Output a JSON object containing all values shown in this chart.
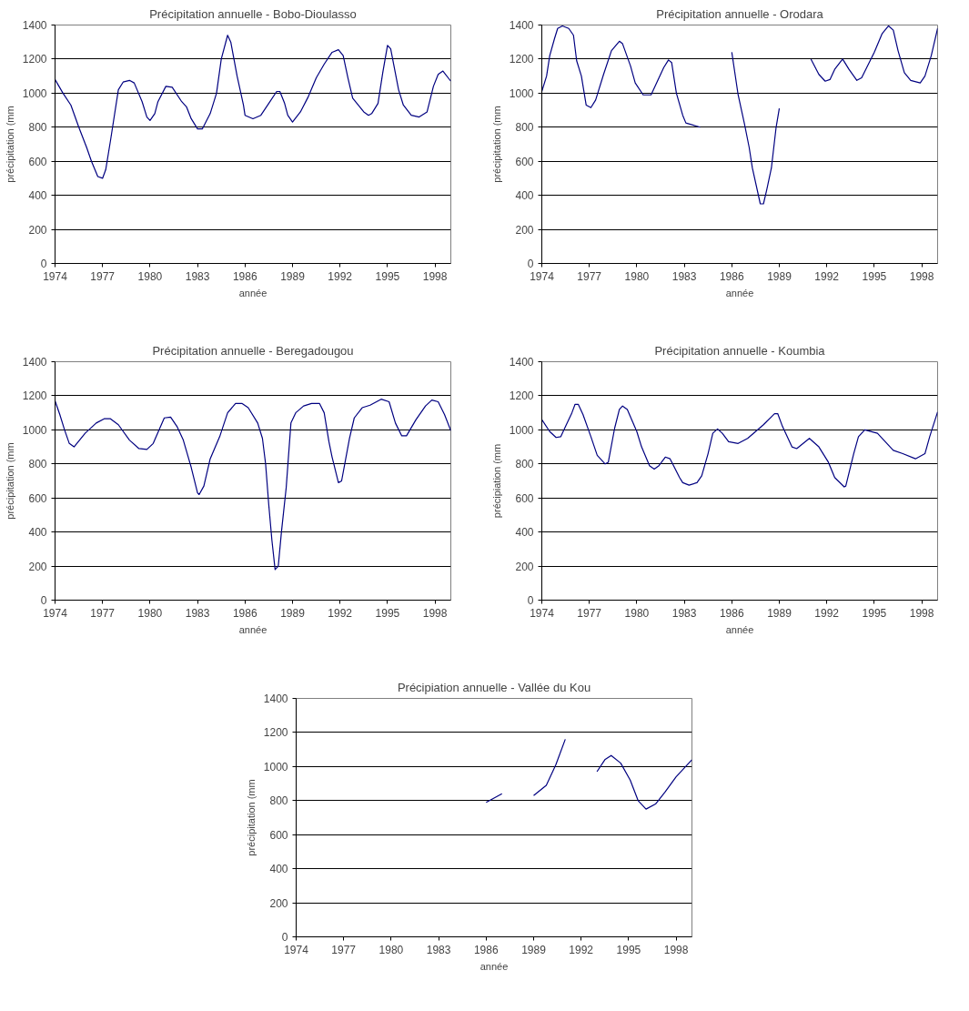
{
  "chart_data": [
    {
      "type": "line",
      "title": "Précipitation annuelle - Bobo-Dioulasso",
      "xlabel": "année",
      "ylabel": "précipitation (mm",
      "xlim": [
        1974,
        1999
      ],
      "ylim": [
        0,
        1400
      ],
      "xticks": [
        1974,
        1977,
        1980,
        1983,
        1986,
        1989,
        1992,
        1995,
        1998
      ],
      "yticks": [
        0,
        200,
        400,
        600,
        800,
        1000,
        1200,
        1400
      ],
      "grid": "y",
      "x": [
        1974.0,
        1974.5,
        1975.0,
        1975.5,
        1976.0,
        1976.3,
        1976.7,
        1977.0,
        1977.2,
        1977.5,
        1978.0,
        1978.3,
        1978.7,
        1979.0,
        1979.5,
        1979.8,
        1980.0,
        1980.3,
        1980.5,
        1981.0,
        1981.4,
        1982.0,
        1982.3,
        1982.6,
        1983.0,
        1983.3,
        1983.8,
        1984.2,
        1984.5,
        1984.9,
        1985.1,
        1985.5,
        1985.9,
        1986.0,
        1986.5,
        1987.0,
        1987.5,
        1988.0,
        1988.2,
        1988.5,
        1988.7,
        1989.0,
        1989.5,
        1990.0,
        1990.5,
        1991.0,
        1991.5,
        1991.9,
        1992.2,
        1992.5,
        1992.8,
        1993.5,
        1993.8,
        1994.0,
        1994.4,
        1994.7,
        1995.0,
        1995.2,
        1995.7,
        1996.0,
        1996.5,
        1997.0,
        1997.5,
        1997.9,
        1998.2,
        1998.5,
        1999.0
      ],
      "series": [
        {
          "color": "#000080",
          "values": [
            1080,
            1000,
            930,
            800,
            680,
            600,
            510,
            500,
            550,
            720,
            1020,
            1065,
            1075,
            1060,
            950,
            860,
            840,
            880,
            950,
            1040,
            1035,
            950,
            920,
            850,
            790,
            790,
            880,
            1000,
            1200,
            1340,
            1300,
            1100,
            930,
            870,
            850,
            870,
            940,
            1010,
            1010,
            940,
            870,
            830,
            890,
            980,
            1090,
            1170,
            1240,
            1255,
            1220,
            1090,
            970,
            890,
            870,
            880,
            940,
            1120,
            1280,
            1260,
            1020,
            930,
            870,
            860,
            890,
            1040,
            1110,
            1130,
            1070
          ]
        }
      ]
    },
    {
      "type": "line",
      "title": "Précipitation annuelle - Orodara",
      "xlabel": "année",
      "ylabel": "précipitation (mm",
      "xlim": [
        1974,
        1999
      ],
      "ylim": [
        0,
        1400
      ],
      "xticks": [
        1974,
        1977,
        1980,
        1983,
        1986,
        1989,
        1992,
        1995,
        1998
      ],
      "yticks": [
        0,
        200,
        400,
        600,
        800,
        1000,
        1200,
        1400
      ],
      "grid": "y",
      "x": [
        1974.0,
        1974.3,
        1974.5,
        1974.8,
        1975.0,
        1975.3,
        1975.7,
        1976.0,
        1976.2,
        1976.5,
        1976.8,
        1977.1,
        1977.4,
        1977.9,
        1978.4,
        1978.9,
        1979.1,
        1979.6,
        1979.9,
        1980.4,
        1980.9,
        1981.2,
        1981.7,
        1982.0,
        1982.2,
        1982.5,
        1982.9,
        1983.1,
        1984.0,
        1985.0,
        1986.0,
        1986.4,
        1986.8,
        1987.1,
        1987.3,
        1987.8,
        1988.0,
        1988.2,
        1988.5,
        1988.8,
        1989.0,
        1990.0,
        1991.0,
        1991.5,
        1991.9,
        1992.2,
        1992.5,
        1993.0,
        1993.4,
        1993.9,
        1994.2,
        1995.0,
        1995.5,
        1995.9,
        1996.2,
        1996.5,
        1996.9,
        1997.3,
        1997.9,
        1998.2,
        1998.6,
        1999.0
      ],
      "series": [
        {
          "color": "#000080",
          "values": [
            1010,
            1100,
            1220,
            1320,
            1380,
            1395,
            1380,
            1340,
            1190,
            1100,
            930,
            915,
            960,
            1110,
            1250,
            1305,
            1290,
            1160,
            1060,
            990,
            990,
            1050,
            1150,
            1195,
            1180,
            1000,
            870,
            825,
            800,
            null,
            1240,
            990,
            820,
            680,
            560,
            350,
            350,
            430,
            560,
            800,
            910,
            null,
            1200,
            1110,
            1070,
            1080,
            1140,
            1200,
            1140,
            1075,
            1090,
            1240,
            1350,
            1395,
            1370,
            1250,
            1120,
            1075,
            1060,
            1100,
            1220,
            1380
          ]
        }
      ]
    },
    {
      "type": "line",
      "title": "Précipitation annuelle - Beregadougou",
      "xlabel": "année",
      "ylabel": "précipitation (mm",
      "xlim": [
        1974,
        1999
      ],
      "ylim": [
        0,
        1400
      ],
      "xticks": [
        1974,
        1977,
        1980,
        1983,
        1986,
        1989,
        1992,
        1995,
        1998
      ],
      "yticks": [
        0,
        200,
        400,
        600,
        800,
        1000,
        1200,
        1400
      ],
      "grid": "y",
      "x": [
        1974.0,
        1974.3,
        1974.6,
        1974.9,
        1975.2,
        1975.9,
        1976.6,
        1977.1,
        1977.5,
        1978.0,
        1978.7,
        1979.3,
        1979.8,
        1980.2,
        1980.9,
        1981.3,
        1981.7,
        1982.1,
        1982.6,
        1983.0,
        1983.1,
        1983.4,
        1983.8,
        1984.4,
        1984.9,
        1985.4,
        1985.8,
        1986.2,
        1986.8,
        1987.1,
        1987.3,
        1987.5,
        1987.7,
        1987.9,
        1988.1,
        1988.3,
        1988.6,
        1988.9,
        1989.2,
        1989.7,
        1990.2,
        1990.7,
        1991.0,
        1991.3,
        1991.5,
        1991.9,
        1992.1,
        1992.6,
        1992.9,
        1993.4,
        1993.9,
        1994.6,
        1995.1,
        1995.5,
        1995.9,
        1996.2,
        1996.8,
        1997.4,
        1997.8,
        1998.2,
        1998.6,
        1999.0
      ],
      "series": [
        {
          "color": "#000080",
          "values": [
            1170,
            1090,
            1000,
            920,
            900,
            980,
            1040,
            1065,
            1065,
            1030,
            940,
            890,
            885,
            920,
            1070,
            1075,
            1020,
            940,
            780,
            630,
            620,
            670,
            830,
            960,
            1100,
            1155,
            1155,
            1130,
            1040,
            950,
            800,
            560,
            350,
            180,
            200,
            400,
            660,
            1040,
            1100,
            1140,
            1155,
            1155,
            1100,
            930,
            840,
            690,
            700,
            950,
            1070,
            1130,
            1145,
            1180,
            1165,
            1040,
            965,
            965,
            1060,
            1140,
            1175,
            1165,
            1090,
            995
          ]
        }
      ]
    },
    {
      "type": "line",
      "title": "Précipitation annuelle - Koumbia",
      "xlabel": "année",
      "ylabel": "précipiation (mm",
      "xlim": [
        1974,
        1999
      ],
      "ylim": [
        0,
        1400
      ],
      "xticks": [
        1974,
        1977,
        1980,
        1983,
        1986,
        1989,
        1992,
        1995,
        1998
      ],
      "yticks": [
        0,
        200,
        400,
        600,
        800,
        1000,
        1200,
        1400
      ],
      "grid": "y",
      "x": [
        1974.0,
        1974.5,
        1974.9,
        1975.2,
        1975.5,
        1975.9,
        1976.1,
        1976.3,
        1976.6,
        1977.1,
        1977.5,
        1978.0,
        1978.2,
        1978.6,
        1978.9,
        1979.1,
        1979.4,
        1980.0,
        1980.3,
        1980.8,
        1981.1,
        1981.4,
        1981.8,
        1982.1,
        1982.7,
        1982.9,
        1983.3,
        1983.8,
        1984.1,
        1984.5,
        1984.8,
        1985.1,
        1985.4,
        1985.8,
        1986.4,
        1987.0,
        1988.0,
        1988.7,
        1988.9,
        1989.2,
        1989.8,
        1990.1,
        1990.9,
        1991.5,
        1992.1,
        1992.5,
        1993.1,
        1993.2,
        1993.7,
        1994.0,
        1994.4,
        1995.2,
        1996.2,
        1996.8,
        1997.6,
        1998.2,
        1998.5,
        1999.0
      ],
      "series": [
        {
          "color": "#000080",
          "values": [
            1060,
            990,
            955,
            960,
            1020,
            1100,
            1150,
            1150,
            1090,
            960,
            850,
            800,
            810,
            1010,
            1120,
            1140,
            1120,
            990,
            900,
            790,
            770,
            790,
            840,
            830,
            720,
            690,
            675,
            690,
            730,
            860,
            980,
            1005,
            980,
            930,
            920,
            950,
            1030,
            1095,
            1095,
            1020,
            900,
            890,
            950,
            900,
            810,
            720,
            665,
            670,
            860,
            960,
            1000,
            980,
            880,
            860,
            830,
            860,
            960,
            1105
          ]
        }
      ]
    },
    {
      "type": "line",
      "title": "Précipiation annuelle - Vallée du Kou",
      "xlabel": "année",
      "ylabel": "précipitation (mm",
      "xlim": [
        1974,
        1999
      ],
      "ylim": [
        0,
        1400
      ],
      "xticks": [
        1974,
        1977,
        1980,
        1983,
        1986,
        1989,
        1992,
        1995,
        1998
      ],
      "yticks": [
        0,
        200,
        400,
        600,
        800,
        1000,
        1200,
        1400
      ],
      "grid": "y",
      "x": [
        1986.0,
        1987.0,
        1988.0,
        1989.0,
        1989.8,
        1990.4,
        1991.0,
        1992.0,
        1993.0,
        1993.5,
        1993.9,
        1994.5,
        1995.1,
        1995.6,
        1996.1,
        1996.7,
        1997.3,
        1998.0,
        1999.0
      ],
      "series": [
        {
          "color": "#000080",
          "values": [
            790,
            840,
            null,
            830,
            890,
            1010,
            1160,
            null,
            970,
            1040,
            1065,
            1020,
            920,
            800,
            750,
            780,
            850,
            940,
            1040
          ]
        }
      ]
    }
  ]
}
